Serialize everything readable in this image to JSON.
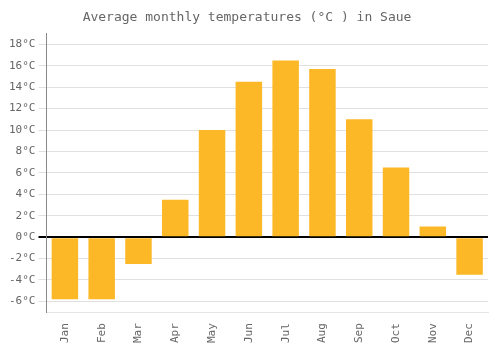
{
  "chart_data": {
    "type": "bar",
    "title": "Average monthly temperatures (°C ) in Saue",
    "categories": [
      "Jan",
      "Feb",
      "Mar",
      "Apr",
      "May",
      "Jun",
      "Jul",
      "Aug",
      "Sep",
      "Oct",
      "Nov",
      "Dec"
    ],
    "values": [
      -5.8,
      -5.8,
      -2.5,
      3.5,
      10.0,
      14.5,
      16.5,
      15.7,
      11.0,
      6.5,
      1.0,
      -3.5
    ],
    "color": "#FDB827",
    "ylim": [
      -7,
      19
    ],
    "yticks": [
      {
        "value": -6,
        "label": "-6°C"
      },
      {
        "value": -4,
        "label": "-4°C"
      },
      {
        "value": -2,
        "label": "-2°C"
      },
      {
        "value": 0,
        "label": "0°C"
      },
      {
        "value": 2,
        "label": "2°C"
      },
      {
        "value": 4,
        "label": "4°C"
      },
      {
        "value": 6,
        "label": "6°C"
      },
      {
        "value": 8,
        "label": "8°C"
      },
      {
        "value": 10,
        "label": "10°C"
      },
      {
        "value": 12,
        "label": "12°C"
      },
      {
        "value": 14,
        "label": "14°C"
      },
      {
        "value": 16,
        "label": "16°C"
      },
      {
        "value": 18,
        "label": "18°C"
      }
    ],
    "grid": true
  }
}
